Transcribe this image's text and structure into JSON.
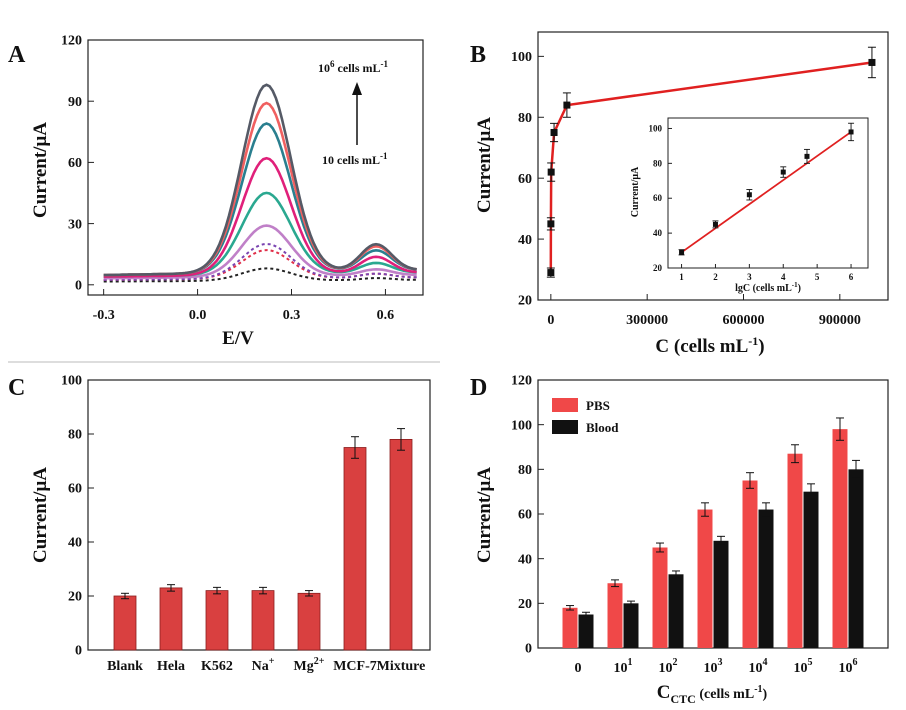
{
  "chart_data": [
    {
      "panel": "A",
      "type": "line",
      "xlabel": "E/V",
      "ylabel": "Current/μA",
      "xlim": [
        -0.35,
        0.72
      ],
      "ylim": [
        -5,
        120
      ],
      "xticks": [
        -0.3,
        0.0,
        0.3,
        0.6
      ],
      "xtick_labels": [
        "-0.3",
        "0.0",
        "0.3",
        "0.6"
      ],
      "yticks": [
        0,
        30,
        60,
        90,
        120
      ],
      "ytick_labels": [
        "0",
        "30",
        "60",
        "90",
        "120"
      ],
      "annotations": {
        "top": "10",
        "top_exp": "6",
        "top_suffix": " cells mL",
        "top_unit_exp": "-1",
        "bottom": "10 cells mL",
        "bottom_exp": "-1"
      },
      "series": [
        {
          "peak": 8,
          "baseline": 2,
          "shoulder": 1,
          "color": "#222222",
          "dashed": true
        },
        {
          "peak": 17,
          "baseline": 3,
          "shoulder": 2,
          "color": "#e0304a",
          "dashed": true
        },
        {
          "peak": 20,
          "baseline": 3,
          "shoulder": 2,
          "color": "#7a44b0",
          "dashed": true
        },
        {
          "peak": 29,
          "baseline": 4,
          "shoulder": 3,
          "color": "#c080c8",
          "dashed": false
        },
        {
          "peak": 45,
          "baseline": 5,
          "shoulder": 5,
          "color": "#2aa890",
          "dashed": false
        },
        {
          "peak": 62,
          "baseline": 5,
          "shoulder": 8,
          "color": "#e0207a",
          "dashed": false
        },
        {
          "peak": 79,
          "baseline": 6,
          "shoulder": 10,
          "color": "#2a7f8f",
          "dashed": false
        },
        {
          "peak": 89,
          "baseline": 6,
          "shoulder": 12,
          "color": "#f06060",
          "dashed": false
        },
        {
          "peak": 98,
          "baseline": 6,
          "shoulder": 13,
          "color": "#555a66",
          "dashed": false
        }
      ]
    },
    {
      "panel": "B",
      "type": "scatter",
      "xlabel": "C (cells mL",
      "xlabel_exp": "-1",
      "xlabel_close": ")",
      "ylabel": "Current/μA",
      "xlim": [
        -40000,
        1050000
      ],
      "ylim": [
        20,
        108
      ],
      "xticks": [
        0,
        300000,
        600000,
        900000
      ],
      "xtick_labels": [
        "0",
        "300000",
        "600000",
        "900000"
      ],
      "yticks": [
        20,
        40,
        60,
        80,
        100
      ],
      "ytick_labels": [
        "20",
        "40",
        "60",
        "80",
        "100"
      ],
      "x": [
        10,
        100,
        1000,
        10000,
        50000,
        1000000
      ],
      "y": [
        29,
        45,
        62,
        75,
        84,
        98
      ],
      "err": [
        1.5,
        2,
        3,
        3,
        4,
        5
      ],
      "color": "#e02020",
      "inset": {
        "xlabel": "lgC (cells mL",
        "xlabel_exp": "-1",
        "xlabel_close": ")",
        "ylabel": "Current/μA",
        "xlim": [
          0.6,
          6.5
        ],
        "ylim": [
          20,
          106
        ],
        "xticks": [
          1,
          2,
          3,
          4,
          5,
          6
        ],
        "xtick_labels": [
          "1",
          "2",
          "3",
          "4",
          "5",
          "6"
        ],
        "yticks": [
          20,
          40,
          60,
          80,
          100
        ],
        "ytick_labels": [
          "20",
          "40",
          "60",
          "80",
          "100"
        ],
        "x": [
          1,
          2,
          3,
          4,
          4.7,
          6
        ],
        "y": [
          29,
          45,
          62,
          75,
          84,
          98
        ],
        "err": [
          1.5,
          2,
          3,
          3,
          4,
          5
        ]
      }
    },
    {
      "panel": "C",
      "type": "bar",
      "ylabel": "Current/μA",
      "categories": [
        "Blank",
        "Hela",
        "K562",
        "Na",
        "Mg",
        "MCF-7",
        "Mixture"
      ],
      "category_sups": [
        "",
        "",
        "",
        "+",
        "2+",
        "",
        ""
      ],
      "values": [
        20,
        23,
        22,
        22,
        21,
        75,
        78
      ],
      "err": [
        1,
        1.2,
        1.2,
        1.2,
        1,
        4,
        4
      ],
      "ylim": [
        0,
        100
      ],
      "yticks": [
        0,
        20,
        40,
        60,
        80,
        100
      ],
      "ytick_labels": [
        "0",
        "20",
        "40",
        "60",
        "80",
        "100"
      ],
      "color": "#d94040"
    },
    {
      "panel": "D",
      "type": "bar",
      "ylabel": "Current/μA",
      "xlabel": "C",
      "xlabel_sub": "CTC",
      "xlabel_unit": " (cells mL",
      "xlabel_exp": "-1",
      "xlabel_close": ")",
      "categories": [
        "0",
        "10",
        "10",
        "10",
        "10",
        "10",
        "10"
      ],
      "category_sups": [
        "",
        "1",
        "2",
        "3",
        "4",
        "5",
        "6"
      ],
      "ylim": [
        0,
        120
      ],
      "yticks": [
        0,
        20,
        40,
        60,
        80,
        100,
        120
      ],
      "ytick_labels": [
        "0",
        "20",
        "40",
        "60",
        "80",
        "100",
        "120"
      ],
      "series": [
        {
          "name": "PBS",
          "values": [
            18,
            29,
            45,
            62,
            75,
            87,
            98
          ],
          "err": [
            1,
            1.5,
            2,
            3,
            3.5,
            4,
            5
          ],
          "color": "#f04848"
        },
        {
          "name": "Blood",
          "values": [
            15,
            20,
            33,
            48,
            62,
            70,
            80
          ],
          "err": [
            1,
            1,
            1.5,
            2,
            3,
            3.5,
            4
          ],
          "color": "#111111"
        }
      ]
    }
  ]
}
